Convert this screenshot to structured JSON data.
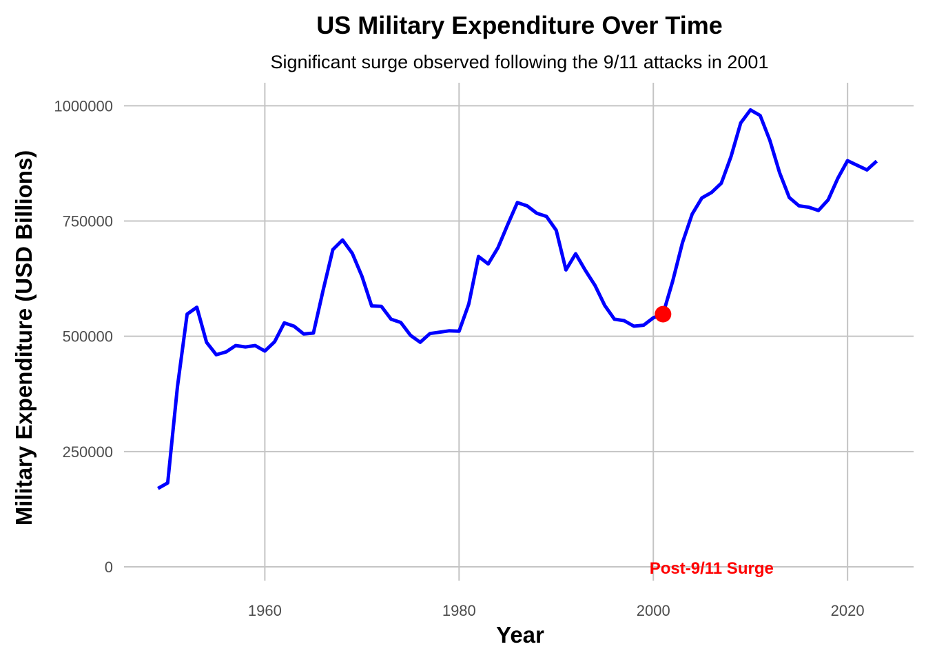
{
  "chart_data": {
    "type": "line",
    "title": "US Military Expenditure Over Time",
    "subtitle": "Significant surge observed following the 9/11 attacks in 2001",
    "xlabel": "Year",
    "ylabel": "Military Expenditure (USD Billions)",
    "xlim": [
      1945.5,
      2026.8
    ],
    "ylim": [
      -30000,
      1050000
    ],
    "x_ticks": [
      1960,
      1980,
      2000,
      2020
    ],
    "y_ticks": [
      0,
      250000,
      500000,
      750000,
      1000000
    ],
    "x_tick_labels": [
      "1960",
      "1980",
      "2000",
      "2020"
    ],
    "y_tick_labels": [
      "0",
      "250000",
      "500000",
      "750000",
      "1000000"
    ],
    "grid": true,
    "legend": "none",
    "line_color": "#0000ff",
    "highlight_color": "#ff0000",
    "series": [
      {
        "x": [
          1949,
          1950,
          1951,
          1952,
          1953,
          1954,
          1955,
          1956,
          1957,
          1958,
          1959,
          1960,
          1961,
          1962,
          1963,
          1964,
          1965,
          1966,
          1967,
          1968,
          1969,
          1970,
          1971,
          1972,
          1973,
          1974,
          1975,
          1976,
          1977,
          1978,
          1979,
          1980,
          1981,
          1982,
          1983,
          1984,
          1985,
          1986,
          1987,
          1988,
          1989,
          1990,
          1991,
          1992,
          1993,
          1994,
          1995,
          1996,
          1997,
          1998,
          1999,
          2000,
          2001,
          2002,
          2003,
          2004,
          2005,
          2006,
          2007,
          2008,
          2009,
          2010,
          2011,
          2012,
          2013,
          2014,
          2015,
          2016,
          2017,
          2018,
          2019,
          2020,
          2021,
          2022,
          2023
        ],
        "values": [
          170000,
          182000,
          390000,
          548000,
          563000,
          487000,
          460000,
          466000,
          480000,
          477000,
          480000,
          468000,
          488000,
          529000,
          522000,
          505000,
          507000,
          600000,
          688000,
          709000,
          680000,
          630000,
          566000,
          565000,
          537000,
          530000,
          502000,
          487000,
          506000,
          509000,
          512000,
          511000,
          570000,
          673000,
          657000,
          692000,
          742000,
          790000,
          783000,
          767000,
          760000,
          730000,
          644000,
          679000,
          643000,
          610000,
          567000,
          537000,
          534000,
          522000,
          524000,
          540000,
          548000,
          620000,
          703000,
          765000,
          800000,
          812000,
          832000,
          890000,
          963000,
          991000,
          979000,
          925000,
          855000,
          801000,
          783000,
          780000,
          773000,
          796000,
          843000,
          881000,
          871000,
          861000,
          880000
        ]
      }
    ],
    "highlight_point": {
      "x": 2001,
      "y": 548000
    },
    "annotation": {
      "text": "Post-9/11 Surge",
      "x": 2006,
      "y": 0
    }
  }
}
